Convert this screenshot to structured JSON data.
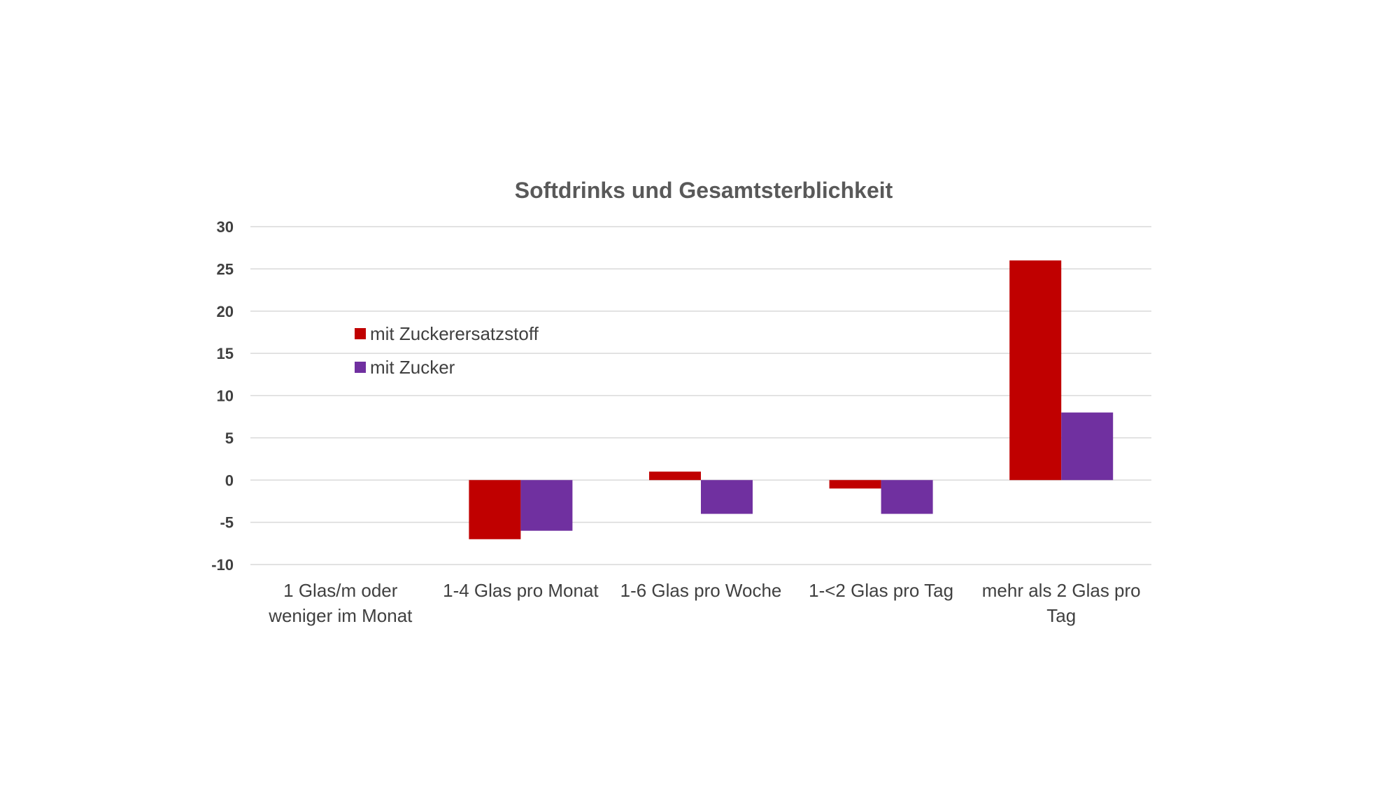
{
  "chart_data": {
    "type": "bar",
    "title": "Softdrinks und Gesamtsterblichkeit",
    "xlabel": "",
    "ylabel": "",
    "categories": [
      "1 Glas/m oder weniger im Monat",
      "1-4 Glas pro Monat",
      "1-6 Glas pro Woche",
      "1-<2 Glas pro Tag",
      "mehr als 2 Glas pro Tag"
    ],
    "category_lines": [
      [
        "1 Glas/m oder",
        "weniger im Monat"
      ],
      [
        "1-4 Glas pro Monat"
      ],
      [
        "1-6 Glas pro Woche"
      ],
      [
        "1-<2 Glas pro Tag"
      ],
      [
        "mehr als 2 Glas pro",
        "Tag"
      ]
    ],
    "series": [
      {
        "name": "mit Zuckerersatzstoff",
        "color": "#c00000",
        "values": [
          0,
          -7,
          1,
          -1,
          26
        ]
      },
      {
        "name": "mit Zucker",
        "color": "#7030a0",
        "values": [
          0,
          -6,
          -4,
          -4,
          8
        ]
      }
    ],
    "ylim": [
      -10,
      30
    ],
    "yticks": [
      30,
      25,
      20,
      15,
      10,
      5,
      0,
      -5,
      -10
    ],
    "grid": true,
    "legend_position": "upper-left inside plot"
  }
}
